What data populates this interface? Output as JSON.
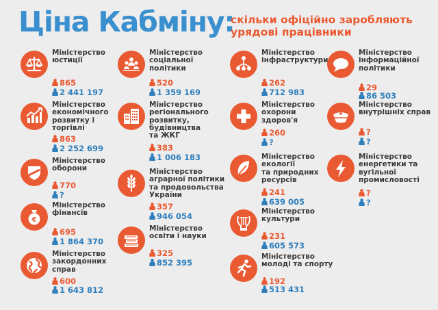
{
  "header": {
    "title": "Ціна Кабміну:",
    "subtitle_lines": [
      "скільки офіційно заробляють",
      "урядові працівники"
    ]
  },
  "colors": {
    "accent_orange": "#ea5a32",
    "accent_blue": "#3a8fcf",
    "text_dark": "#3a3a3a",
    "background": "#ededed"
  },
  "legend_icons": {
    "officials": "person-orange-icon",
    "salary": "person-blue-icon"
  },
  "ministries": [
    {
      "icon": "scales-icon",
      "name_lines": [
        "Міністерство",
        "юстиції"
      ],
      "officials": "865",
      "salary": "2 441 197"
    },
    {
      "icon": "growth-chart-icon",
      "name_lines": [
        "Міністерство",
        "економічного",
        "розвитку і",
        "торгівлі"
      ],
      "officials": "863",
      "salary": "2 252 699"
    },
    {
      "icon": "shield-icon",
      "name_lines": [
        "Міністерство",
        "оборони"
      ],
      "officials": "770",
      "salary": "?"
    },
    {
      "icon": "money-bag-icon",
      "name_lines": [
        "Міністерство",
        "фінансів"
      ],
      "officials": "695",
      "salary": "1 864 370"
    },
    {
      "icon": "globe-icon",
      "name_lines": [
        "Міністерство",
        "закордонних",
        "справ"
      ],
      "officials": "600",
      "salary": "1 643 812"
    },
    {
      "icon": "people-group-icon",
      "name_lines": [
        "Міністерство",
        "соціальної",
        "політики"
      ],
      "officials": "520",
      "salary": "1 359 169"
    },
    {
      "icon": "buildings-icon",
      "name_lines": [
        "Міністерство",
        "регіонального",
        "розвитку,",
        "будівництва",
        "та ЖКГ"
      ],
      "officials": "383",
      "salary": "1 006 183"
    },
    {
      "icon": "wheat-icon",
      "name_lines": [
        "Міністерство",
        "аграрної політики",
        "та продовольства",
        "України"
      ],
      "officials": "357",
      "salary": "946 054"
    },
    {
      "icon": "books-icon",
      "name_lines": [
        "Міністерство",
        "освіти і науки"
      ],
      "officials": "325",
      "salary": "852 395"
    },
    {
      "icon": "network-icon",
      "name_lines": [
        "Міністерство",
        "інфраструктури"
      ],
      "officials": "262",
      "salary": "712 983"
    },
    {
      "icon": "medical-cross-icon",
      "name_lines": [
        "Міністерство",
        "охорони",
        "здоров'я"
      ],
      "officials": "260",
      "salary": "?"
    },
    {
      "icon": "leaf-icon",
      "name_lines": [
        "Міністерство",
        "екології",
        "та природних",
        "ресурсів"
      ],
      "officials": "241",
      "salary": "639 005"
    },
    {
      "icon": "lyre-icon",
      "name_lines": [
        "Міністерство",
        "культури"
      ],
      "officials": "231",
      "salary": "605 573"
    },
    {
      "icon": "runner-icon",
      "name_lines": [
        "Міністерство",
        "молоді та спорту"
      ],
      "officials": "192",
      "salary": "513 431"
    },
    {
      "icon": "speech-bubble-icon",
      "name_lines": [
        "Міністерство",
        "інформаційної",
        "політики"
      ],
      "officials": "29",
      "salary": "86 503"
    },
    {
      "icon": "police-cap-icon",
      "name_lines": [
        "Міністерство",
        "внутрішніх справ"
      ],
      "officials": "?",
      "salary": "?"
    },
    {
      "icon": "lightning-icon",
      "name_lines": [
        "Міністерство",
        "енергетики та",
        "вугільної",
        "промисловості"
      ],
      "officials": "?",
      "salary": "?"
    }
  ]
}
